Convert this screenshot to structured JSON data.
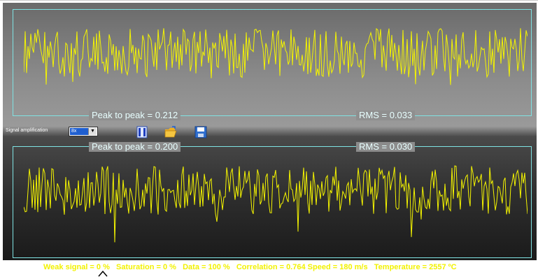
{
  "top_panel": {
    "peak_to_peak": "Peak to peak = 0.212",
    "rms": "RMS = 0.033"
  },
  "bottom_panel": {
    "peak_to_peak": "Peak to peak = 0.200",
    "rms": "RMS = 0.030"
  },
  "controls": {
    "amplification_label": "Signal amplification",
    "amplification_value": "8x",
    "pause_icon": "pause-icon",
    "open_icon": "folder-open-icon",
    "save_icon": "save-icon"
  },
  "status": {
    "weak_signal": "Weak signal =  0 %",
    "saturation": "Saturation =  0 %",
    "data": "Data = 100 %",
    "correlation": "Correlation = 0.764",
    "speed": "Speed = 180 m/s",
    "temperature": "Temperature = 2557 ºC"
  },
  "colors": {
    "signal": "#f5f500",
    "border": "#7fe3e3",
    "status_text": "#f2f200"
  }
}
